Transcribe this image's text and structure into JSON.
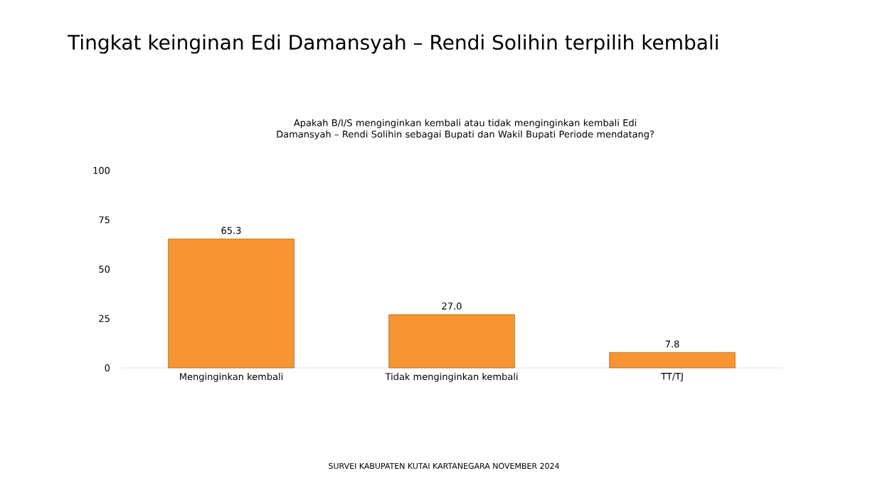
{
  "chart_data": {
    "type": "bar",
    "title": "Tingkat keinginan Edi Damansyah – Rendi Solihin terpilih kembali",
    "subtitle": "Apakah B/I/S menginginkan kembali atau tidak menginginkan kembali Edi Damansyah – Rendi Solihin sebagai Bupati dan Wakil Bupati Periode mendatang?",
    "categories": [
      "Menginginkan kembali",
      "Tidak menginginkan kembali",
      "TT/TJ"
    ],
    "values": [
      65.3,
      27.0,
      7.8
    ],
    "value_labels": [
      "65.3",
      "27.0",
      "7.8"
    ],
    "color": "#f79532",
    "ylim": [
      0,
      100
    ],
    "yticks": [
      0,
      25,
      50,
      75,
      100
    ],
    "annotations": [
      "SURVEI KABUPATEN KUTAI KARTANEGARA NOVEMBER 2024"
    ]
  }
}
